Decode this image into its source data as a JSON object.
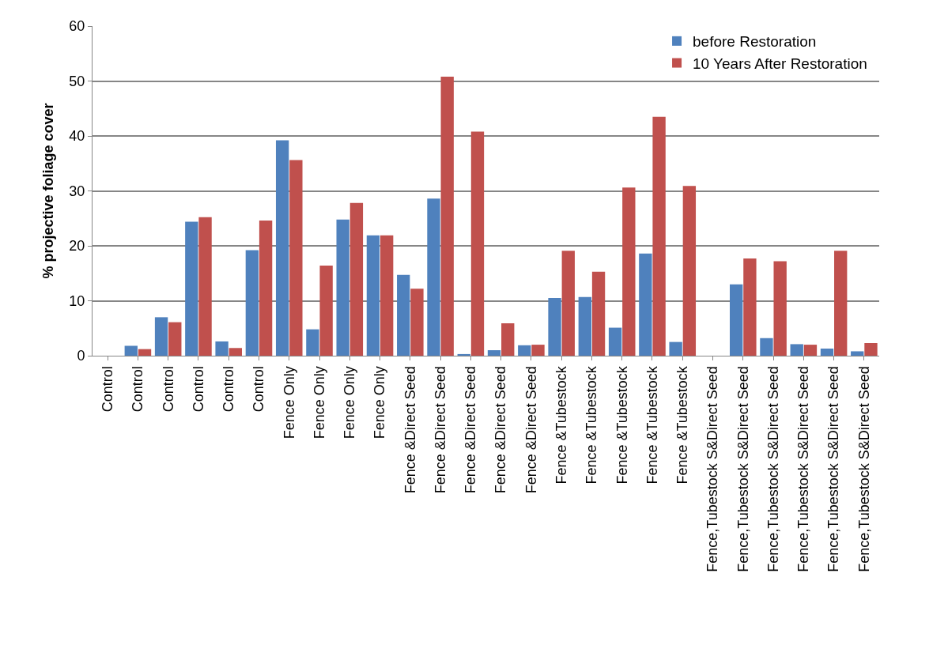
{
  "chart_data": {
    "type": "bar",
    "ylabel": "% projective foliage cover",
    "categories": [
      "Control",
      "Control",
      "Control",
      "Control",
      "Control",
      "Control",
      "Fence Only",
      "Fence Only",
      "Fence Only",
      "Fence Only",
      "Fence &Direct Seed",
      "Fence &Direct Seed",
      "Fence &Direct Seed",
      "Fence &Direct Seed",
      "Fence &Direct Seed",
      "Fence &Tubestock",
      "Fence &Tubestock",
      "Fence &Tubestock",
      "Fence &Tubestock",
      "Fence &Tubestock",
      "Fence,Tubestock S&Direct Seed",
      "Fence,Tubestock S&Direct Seed",
      "Fence,Tubestock S&Direct Seed",
      "Fence,Tubestock S&Direct Seed",
      "Fence,Tubestock S&Direct Seed",
      "Fence,Tubestock S&Direct Seed"
    ],
    "series": [
      {
        "name": "before Restoration",
        "color": "#4f81bd",
        "values": [
          0,
          1.8,
          7.0,
          24.4,
          2.6,
          19.2,
          39.2,
          4.8,
          24.8,
          21.9,
          14.7,
          28.6,
          0.3,
          1.0,
          1.9,
          10.5,
          10.7,
          5.1,
          18.6,
          2.5,
          0,
          13.0,
          3.2,
          2.1,
          1.3,
          0.8
        ]
      },
      {
        "name": "10 Years After Restoration",
        "color": "#c0504d",
        "values": [
          0,
          1.2,
          6.1,
          25.2,
          1.4,
          24.6,
          35.6,
          16.4,
          27.8,
          21.9,
          12.2,
          50.8,
          40.8,
          5.9,
          2.0,
          19.1,
          15.3,
          30.6,
          43.5,
          30.9,
          0,
          17.7,
          17.2,
          2.0,
          19.1,
          2.3
        ]
      }
    ],
    "ylim": [
      0,
      60
    ],
    "yticks": [
      0,
      10,
      20,
      30,
      40,
      50,
      60
    ],
    "grid": "y",
    "legend": "top right"
  }
}
